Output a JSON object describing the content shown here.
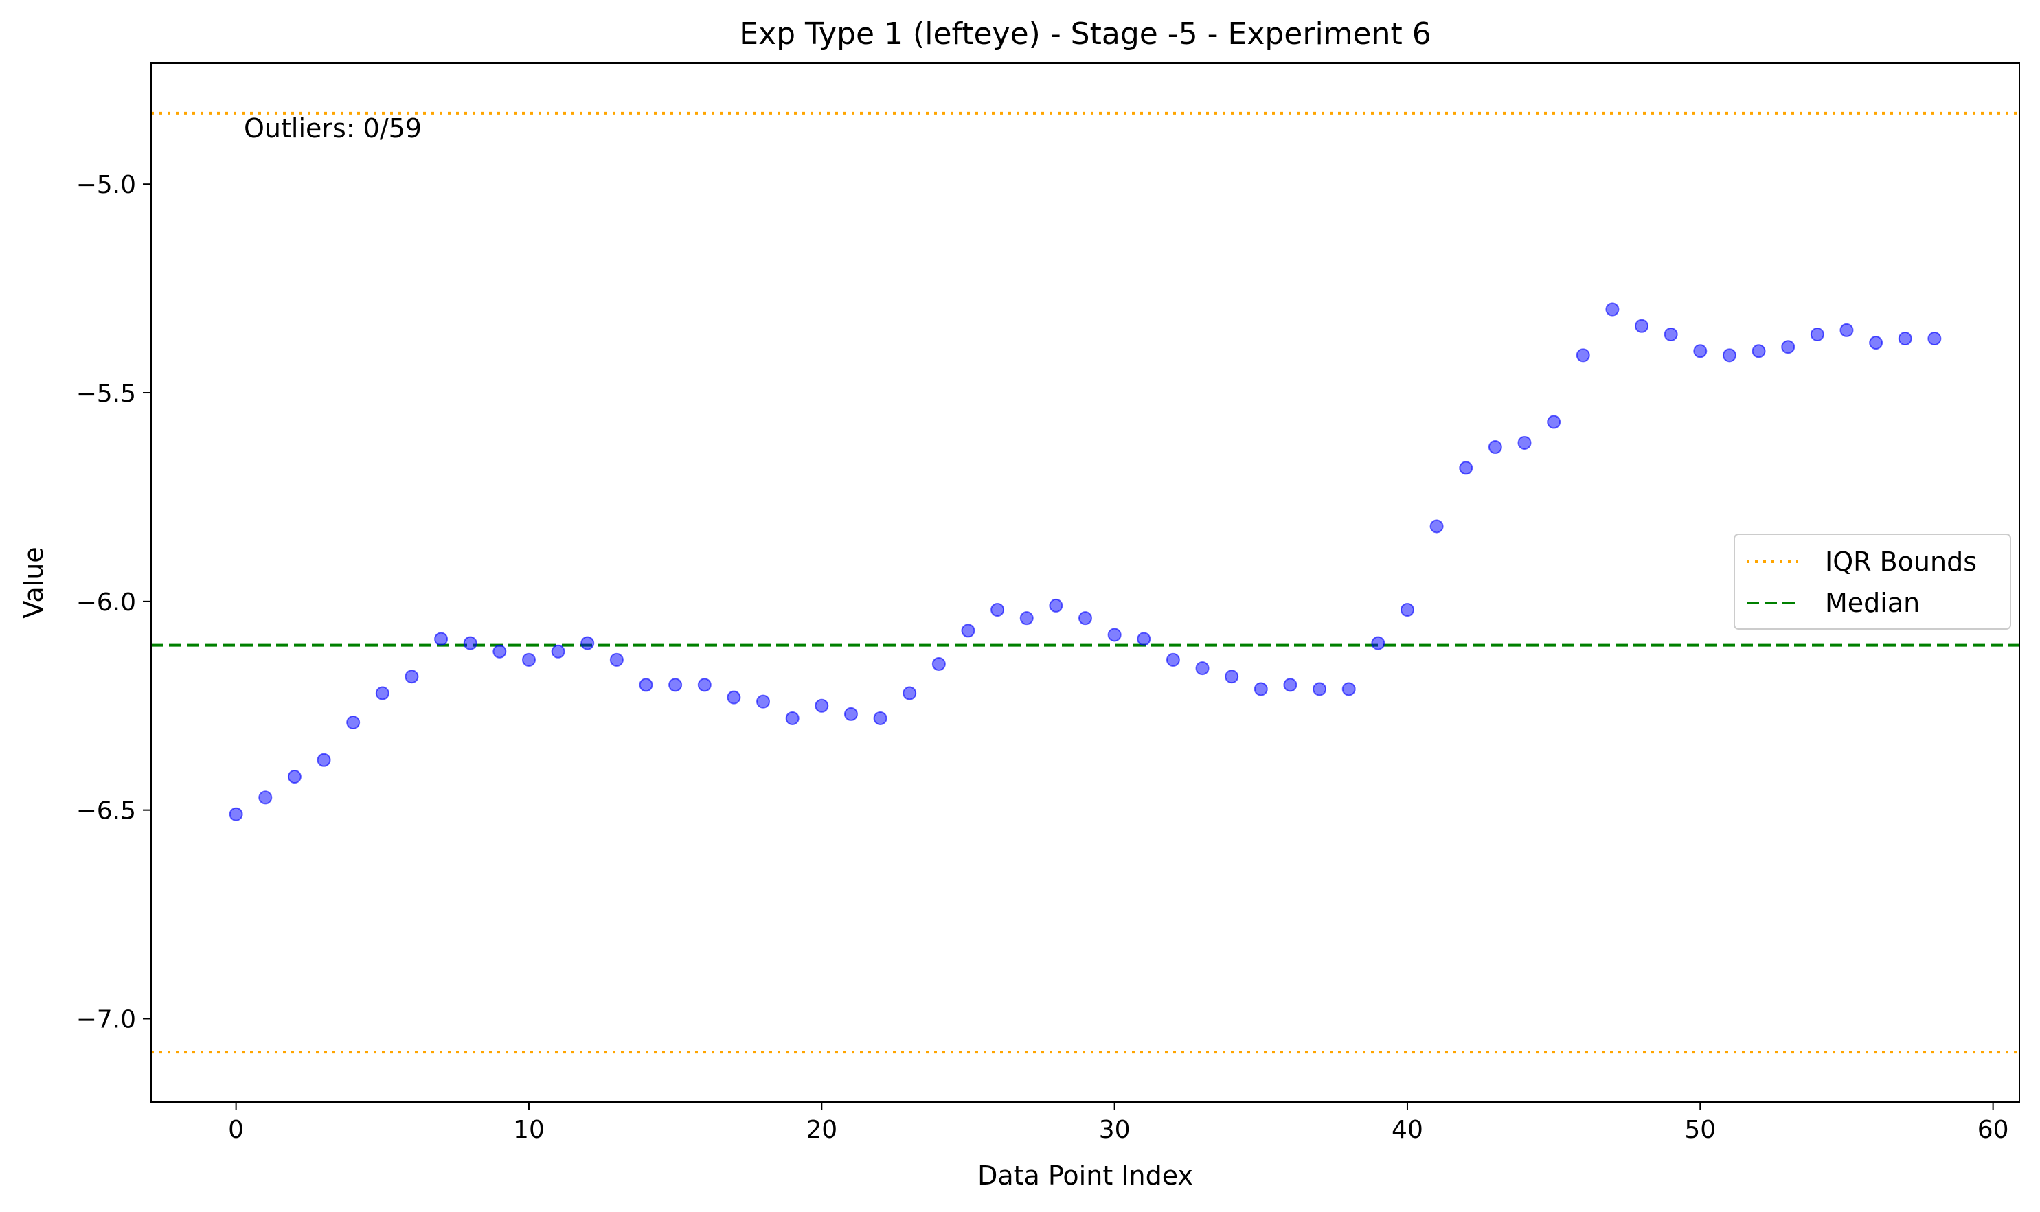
{
  "chart_data": {
    "type": "scatter",
    "title": "Exp Type 1 (lefteye) - Stage -5 - Experiment 6",
    "xlabel": "Data Point Index",
    "ylabel": "Value",
    "xlim": [
      -2.9,
      60.9
    ],
    "ylim": [
      -7.2,
      -4.71
    ],
    "xticks": [
      0,
      10,
      20,
      30,
      40,
      50,
      60
    ],
    "yticks": [
      -7.0,
      -6.5,
      -6.0,
      -5.5,
      -5.0
    ],
    "xtick_labels": [
      "0",
      "10",
      "20",
      "30",
      "40",
      "50",
      "60"
    ],
    "ytick_labels": [
      "−7.0",
      "−6.5",
      "−6.0",
      "−5.5",
      "−5.0"
    ],
    "grid": false,
    "series": [
      {
        "type": "scatter",
        "color": "#0000ff",
        "x": [
          0,
          1,
          2,
          3,
          4,
          5,
          6,
          7,
          8,
          9,
          10,
          11,
          12,
          13,
          14,
          15,
          16,
          17,
          18,
          19,
          20,
          21,
          22,
          23,
          24,
          25,
          26,
          27,
          28,
          29,
          30,
          31,
          32,
          33,
          34,
          35,
          36,
          37,
          38,
          39,
          40,
          41,
          42,
          43,
          44,
          45,
          46,
          47,
          48,
          49,
          50,
          51,
          52,
          53,
          54,
          55,
          56,
          57,
          58
        ],
        "y": [
          -6.51,
          -6.47,
          -6.42,
          -6.38,
          -6.29,
          -6.22,
          -6.18,
          -6.09,
          -6.1,
          -6.12,
          -6.14,
          -6.12,
          -6.1,
          -6.14,
          -6.2,
          -6.2,
          -6.2,
          -6.23,
          -6.24,
          -6.28,
          -6.25,
          -6.27,
          -6.28,
          -6.22,
          -6.15,
          -6.07,
          -6.02,
          -6.04,
          -6.01,
          -6.04,
          -6.08,
          -6.09,
          -6.14,
          -6.16,
          -6.18,
          -6.21,
          -6.2,
          -6.21,
          -6.21,
          -6.1,
          -6.02,
          -5.82,
          -5.68,
          -5.63,
          -5.62,
          -5.57,
          -5.41,
          -5.3,
          -5.34,
          -5.36,
          -5.4,
          -5.41,
          -5.4,
          -5.39,
          -5.36,
          -5.35,
          -5.38,
          -5.37,
          -5.37
        ]
      },
      {
        "name": "IQR Bounds",
        "type": "hline",
        "style": "dotted",
        "color": "#ffa500",
        "y": [
          -4.83,
          -7.08
        ]
      },
      {
        "name": "Median",
        "type": "hline",
        "style": "dashed",
        "color": "#008000",
        "y": [
          -6.105
        ]
      }
    ],
    "legend": {
      "position": "center-right",
      "entries": [
        {
          "label": "IQR Bounds",
          "color": "#ffa500",
          "style": "dotted"
        },
        {
          "label": "Median",
          "color": "#008000",
          "style": "dashed"
        }
      ]
    },
    "annotations": [
      {
        "text": "Outliers: 0/59",
        "position": "top-left"
      }
    ]
  }
}
